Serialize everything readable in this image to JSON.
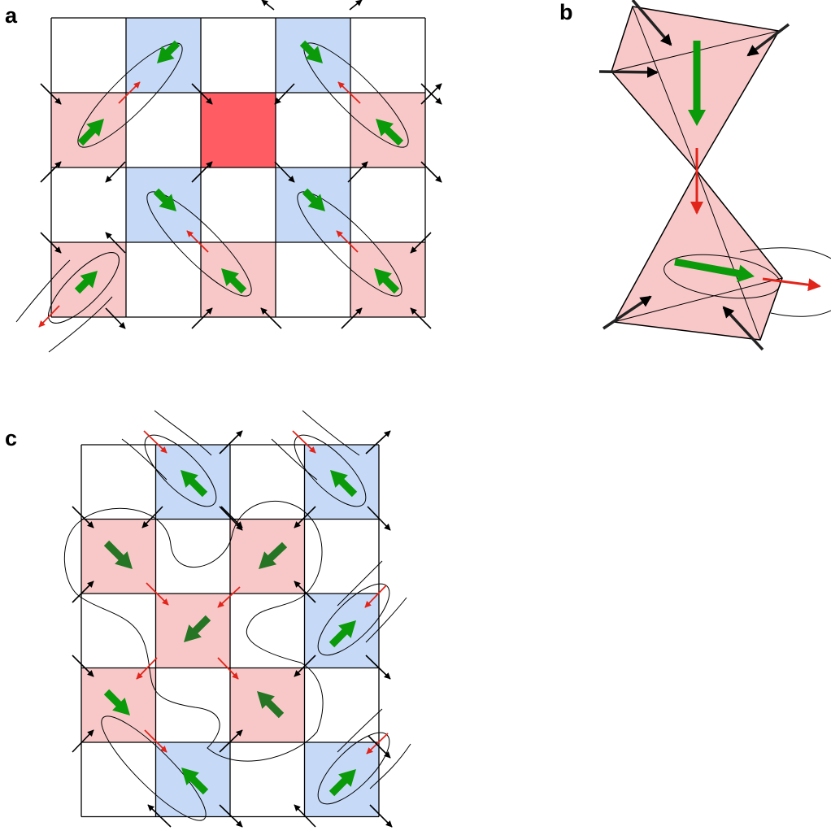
{
  "panels": {
    "a": {
      "label": "a"
    },
    "b": {
      "label": "b"
    },
    "c": {
      "label": "c"
    }
  },
  "colors": {
    "pink": "#f8c8c8",
    "blue": "#c6daf7",
    "red_cell": "#ff5c64",
    "green": "#0a9a0a",
    "dark_green": "#257524",
    "red_arrow": "#e1251b",
    "black": "#000000"
  },
  "icons": {
    "spin": "thick-green-arrow-icon",
    "dark_spin": "thick-dark-green-arrow-icon",
    "corner": "black-corner-arrow-icon",
    "corner_red": "red-corner-arrow-icon"
  }
}
